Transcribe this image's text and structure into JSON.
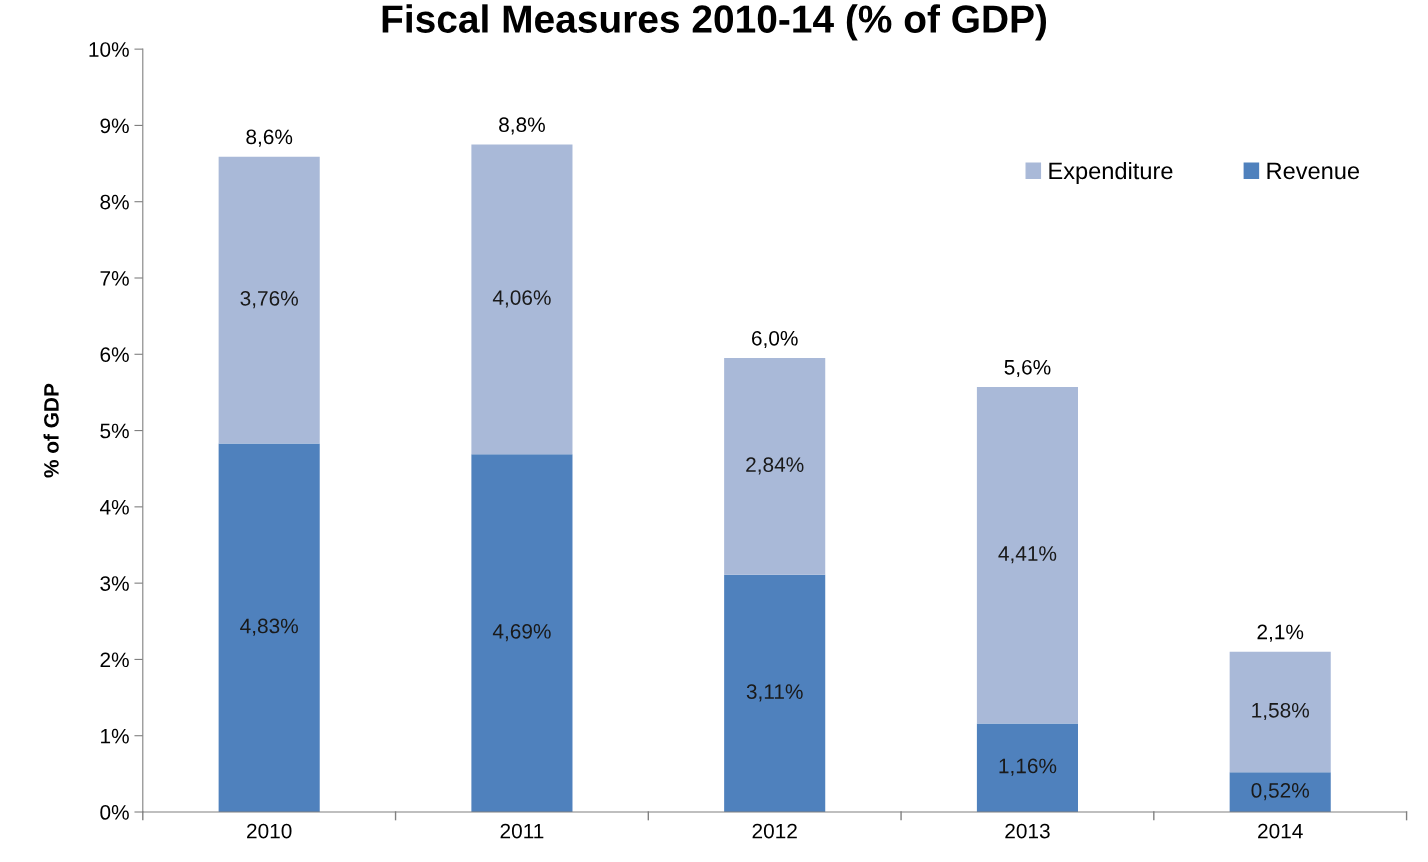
{
  "chart_data": {
    "type": "bar",
    "title": "Fiscal Measures 2010-14 (% of GDP)",
    "ylabel": "% of GDP",
    "categories": [
      "2010",
      "2011",
      "2012",
      "2013",
      "2014"
    ],
    "stacked": true,
    "series": [
      {
        "name": "Revenue",
        "color": "#4f81bd",
        "values": [
          4.83,
          4.69,
          3.11,
          1.16,
          0.52
        ],
        "value_labels": [
          "4,83%",
          "4,69%",
          "3,11%",
          "1,16%",
          "0,52%"
        ]
      },
      {
        "name": "Expenditure",
        "color": "#a9b9d8",
        "values": [
          3.76,
          4.06,
          2.84,
          4.41,
          1.58
        ],
        "value_labels": [
          "3,76%",
          "4,06%",
          "2,84%",
          "4,41%",
          "1,58%"
        ]
      }
    ],
    "totals": [
      "8,6%",
      "8,8%",
      "6,0%",
      "5,6%",
      "2,1%"
    ],
    "ylim": [
      0,
      10
    ],
    "yticks": [
      {
        "value": 0,
        "label": "0%"
      },
      {
        "value": 1,
        "label": "1%"
      },
      {
        "value": 2,
        "label": "2%"
      },
      {
        "value": 3,
        "label": "3%"
      },
      {
        "value": 4,
        "label": "4%"
      },
      {
        "value": 5,
        "label": "5%"
      },
      {
        "value": 6,
        "label": "6%"
      },
      {
        "value": 7,
        "label": "7%"
      },
      {
        "value": 8,
        "label": "8%"
      },
      {
        "value": 9,
        "label": "9%"
      },
      {
        "value": 10,
        "label": "10%"
      }
    ],
    "grid": false,
    "legend": "top right"
  }
}
